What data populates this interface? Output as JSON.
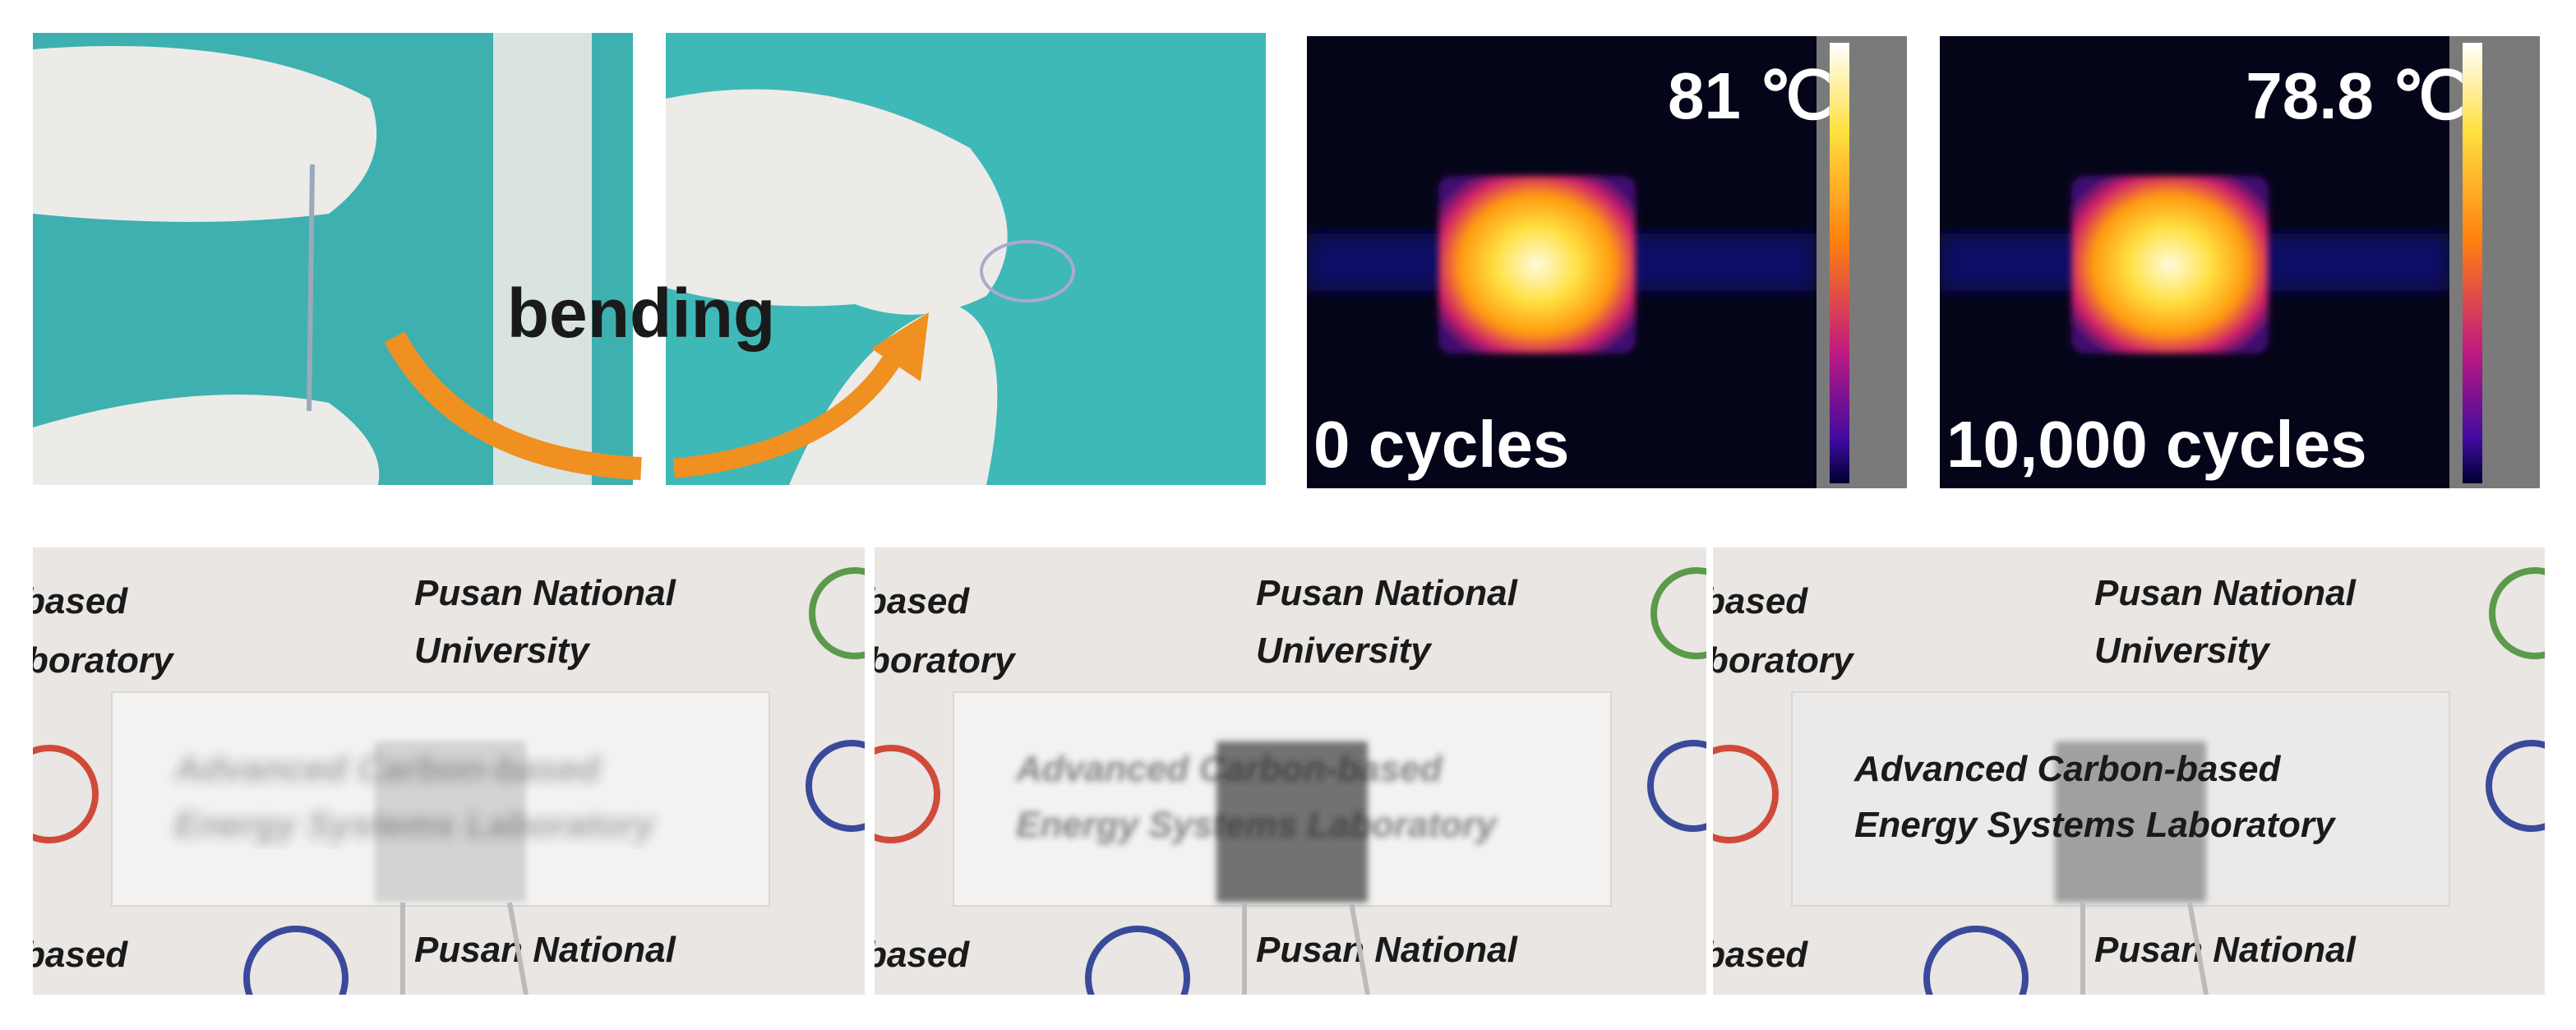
{
  "top_panels": {
    "bending_label": "bending",
    "thermal": [
      {
        "temperature": "81 ℃",
        "cycles": "0 cycles"
      },
      {
        "temperature": "78.8 ℃",
        "cycles": "10,000 cycles"
      }
    ]
  },
  "bottom_panels": [
    {
      "based_top": "based",
      "laboratory": "boratory",
      "pusan_top": "Pusan National",
      "university": "University",
      "sample_line_1": "Advanced Carbon-based",
      "sample_line_2": "Energy Systems Laboratory",
      "based_bottom": "based",
      "pusan_bottom": "Pusan National"
    },
    {
      "based_top": "based",
      "laboratory": "boratory",
      "pusan_top": "Pusan National",
      "university": "University",
      "sample_line_1": "Advanced Carbon-based",
      "sample_line_2": "Energy Systems Laboratory",
      "based_bottom": "based",
      "pusan_bottom": "Pusan National"
    },
    {
      "based_top": "based",
      "laboratory": "boratory",
      "pusan_top": "Pusan National",
      "university": "University",
      "sample_line_1": "Advanced Carbon-based",
      "sample_line_2": "Energy Systems Laboratory",
      "based_bottom": "based",
      "pusan_bottom": "Pusan National"
    }
  ]
}
